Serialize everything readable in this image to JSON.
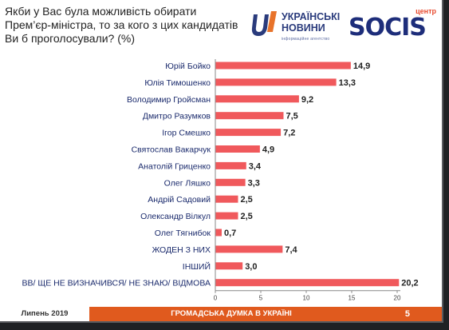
{
  "header": {
    "title_lines": [
      "Якби у Вас була можливість обирати",
      "Прем’єр-міністра, то за кого з цих кандидатів",
      "Ви б проголосували? (%)"
    ]
  },
  "logos": {
    "ukrainski_novyny": {
      "line1": "УКРАЇНСЬКІ",
      "line2": "НОВИНИ",
      "tagline": "інформаційне агентство",
      "colors": {
        "blue": "#2a3b7c",
        "orange": "#e8732a"
      }
    },
    "socis": {
      "top": "центр",
      "word": "SOCIS",
      "colors": {
        "blue": "#1d2d7a",
        "red": "#e84a2e"
      }
    }
  },
  "chart_data": {
    "type": "bar",
    "orientation": "horizontal",
    "categories": [
      "Юрій Бойко",
      "Юлія Тимошенко",
      "Володимир Гройсман",
      "Дмитро Разумков",
      "Ігор Смешко",
      "Святослав Вакарчук",
      "Анатолій Гриценко",
      "Олег Ляшко",
      "Андрій Садовий",
      "Олександр Вілкул",
      "Олег Тягнибок",
      "ЖОДЕН З НИХ",
      "ІНШИЙ",
      "ВВ/ ЩЕ НЕ ВИЗНАЧИВСЯ/ НЕ ЗНАЮ/ ВІДМОВА"
    ],
    "values": [
      14.9,
      13.3,
      9.2,
      7.5,
      7.2,
      4.9,
      3.4,
      3.3,
      2.5,
      2.5,
      0.7,
      7.4,
      3.0,
      20.2
    ],
    "value_labels": [
      "14,9",
      "13,3",
      "9,2",
      "7,5",
      "7,2",
      "4,9",
      "3,4",
      "3,3",
      "2,5",
      "2,5",
      "0,7",
      "7,4",
      "3,0",
      "20,2"
    ],
    "xlim": [
      0,
      20
    ],
    "xticks": [
      "0",
      "5",
      "10",
      "15",
      "20"
    ],
    "bar_color": "#f0595c",
    "grid": false,
    "legend": "none"
  },
  "footer": {
    "date": "Липень 2019",
    "label": "ГРОМАДСЬКА ДУМКА В УКРАЇНІ",
    "page": "5",
    "accent_color": "#e05a1e"
  }
}
